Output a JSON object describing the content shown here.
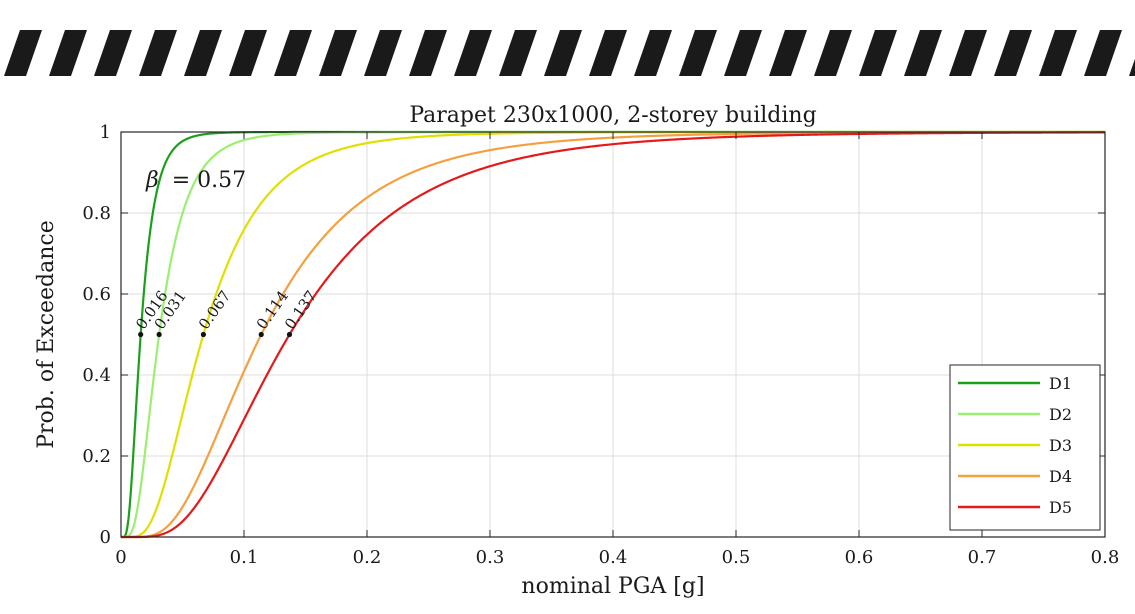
{
  "chart_data": {
    "type": "line",
    "title": "Parapet 230x1000, 2-storey building",
    "xlabel": "nominal PGA [g]",
    "ylabel": "Prob. of Exceedance",
    "xlim": [
      0,
      0.8
    ],
    "ylim": [
      0,
      1
    ],
    "xticks": [
      0,
      0.1,
      0.2,
      0.3,
      0.4,
      0.5,
      0.6,
      0.7,
      0.8
    ],
    "xtick_labels": [
      "0",
      "0.1",
      "0.2",
      "0.3",
      "0.4",
      "0.5",
      "0.6",
      "0.7",
      "0.8"
    ],
    "yticks": [
      0,
      0.2,
      0.4,
      0.6,
      0.8,
      1
    ],
    "ytick_labels": [
      "0",
      "0.2",
      "0.4",
      "0.6",
      "0.8",
      "1"
    ],
    "grid": true,
    "legend_position": "bottom-right",
    "beta": 0.57,
    "beta_label": "= 0.57",
    "beta_symbol": "β",
    "series": [
      {
        "name": "D1",
        "median": 0.016,
        "median_label": "0.016",
        "color": "#1aa01a"
      },
      {
        "name": "D2",
        "median": 0.031,
        "median_label": "0.031",
        "color": "#9bef70"
      },
      {
        "name": "D3",
        "median": 0.067,
        "median_label": "0.067",
        "color": "#e0e000"
      },
      {
        "name": "D4",
        "median": 0.114,
        "median_label": "0.114",
        "color": "#f5a040"
      },
      {
        "name": "D5",
        "median": 0.137,
        "median_label": "0.137",
        "color": "#e41a1a"
      }
    ]
  }
}
